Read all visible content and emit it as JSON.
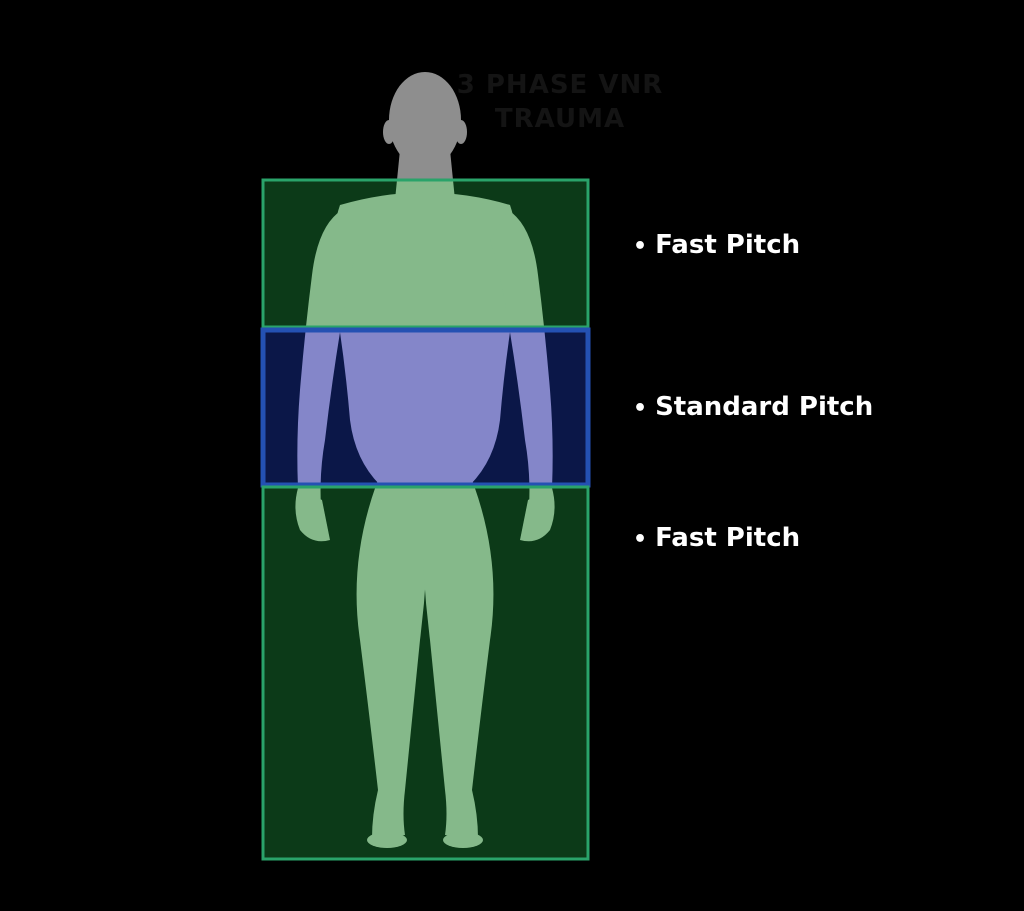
{
  "title": "3 PHASE VNR TRAUMA",
  "zones": [
    {
      "label": "Fast Pitch",
      "fill": "#0c3a18",
      "stroke": "#2aa36a"
    },
    {
      "label": "Standard Pitch",
      "fill": "#0b1748",
      "stroke": "#2451b3"
    },
    {
      "label": "Fast Pitch",
      "fill": "#0c3a18",
      "stroke": "#2aa36a"
    }
  ],
  "bullet": "•",
  "colors": {
    "background": "#000000",
    "body_green": "#9bd09f",
    "body_blue": "#9a9ae0",
    "head_gray": "#8e8e8e"
  }
}
